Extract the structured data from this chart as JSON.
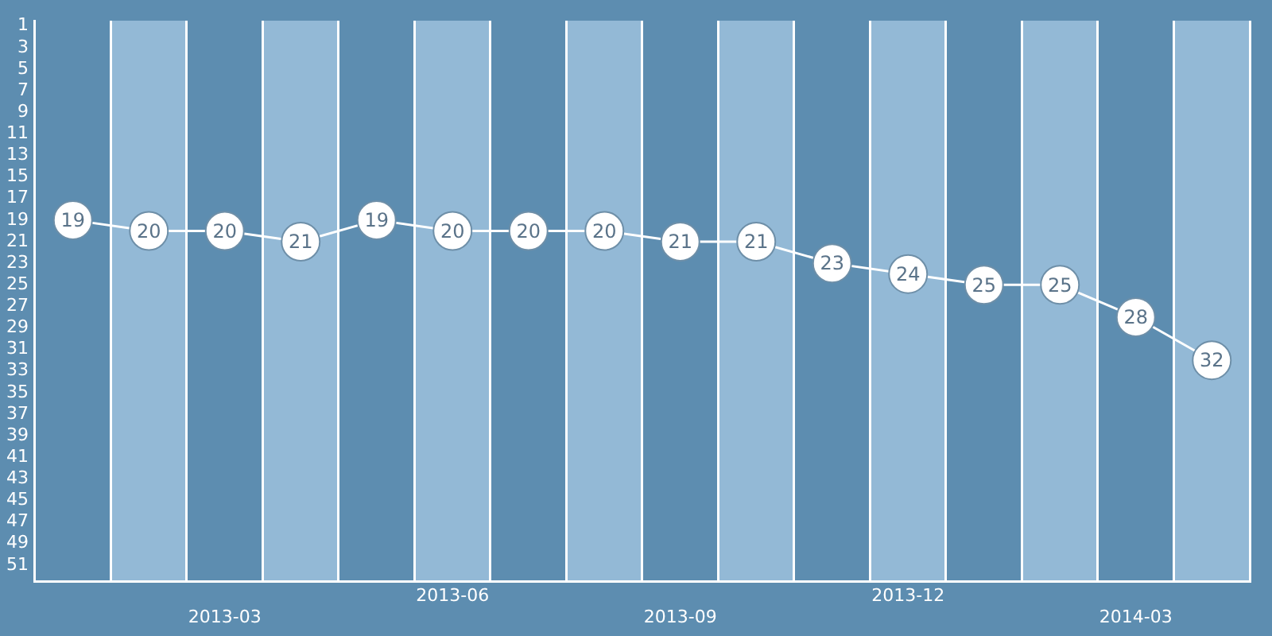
{
  "chart_data": {
    "type": "line",
    "categories": [
      null,
      null,
      "2013-03",
      null,
      null,
      "2013-06",
      null,
      null,
      "2013-09",
      null,
      null,
      "2013-12",
      null,
      null,
      "2014-03",
      null
    ],
    "series": [
      {
        "color": "#ffffff",
        "values": [
          19,
          20,
          20,
          21,
          19,
          20,
          20,
          20,
          21,
          21,
          23,
          24,
          25,
          25,
          28,
          32
        ]
      }
    ],
    "ylim": [
      52.5,
      0.5
    ],
    "yticks": [
      1,
      3,
      5,
      7,
      9,
      11,
      13,
      15,
      17,
      19,
      21,
      23,
      25,
      27,
      29,
      31,
      33,
      35,
      37,
      39,
      41,
      43,
      45,
      47,
      49,
      51
    ],
    "grid": "x",
    "marker": "circle",
    "data_labels": true,
    "legend": false
  }
}
